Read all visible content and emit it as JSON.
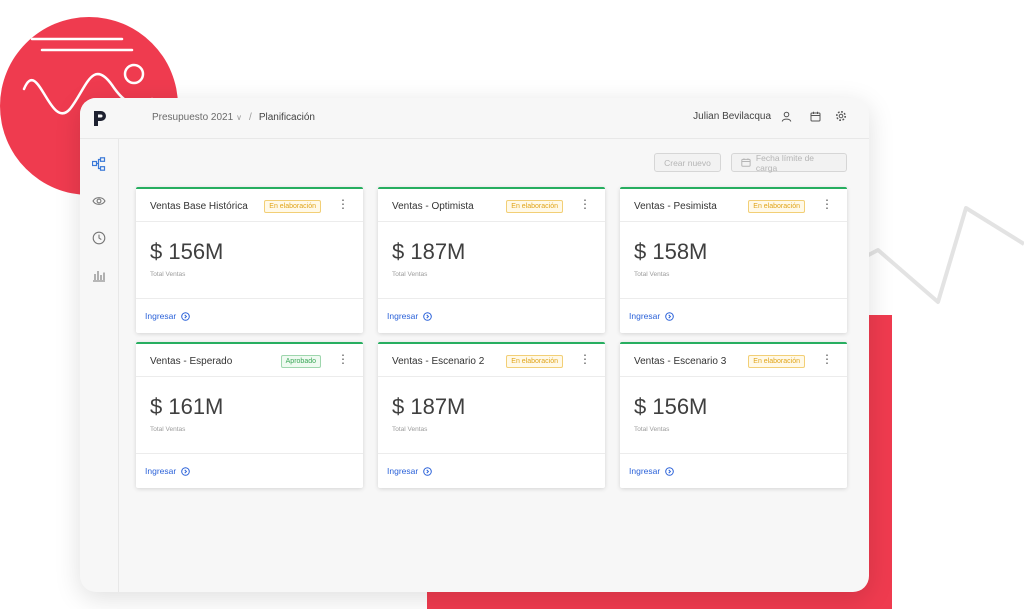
{
  "header": {
    "breadcrumb": [
      {
        "label": "Presupuesto 2021",
        "has_dropdown": true
      },
      {
        "label": "Planificación"
      }
    ],
    "separator": "/",
    "user_name": "Julian Bevilacqua"
  },
  "sidebar": {
    "items": [
      {
        "icon": "hierarchy-icon",
        "active": true
      },
      {
        "icon": "eye-icon",
        "active": false
      },
      {
        "icon": "clock-icon",
        "active": false
      },
      {
        "icon": "bar-chart-icon",
        "active": false
      }
    ]
  },
  "toolbar": {
    "create_label": "Crear nuevo",
    "deadline_label": "Fecha límite de carga"
  },
  "cards": [
    {
      "title": "Ventas Base Histórica",
      "status": "En elaboración",
      "status_type": "pending",
      "amount": "$ 156M",
      "subtitle": "Total Ventas",
      "action": "Ingresar"
    },
    {
      "title": "Ventas - Optimista",
      "status": "En elaboración",
      "status_type": "pending",
      "amount": "$ 187M",
      "subtitle": "Total Ventas",
      "action": "Ingresar"
    },
    {
      "title": "Ventas - Pesimista",
      "status": "En elaboración",
      "status_type": "pending",
      "amount": "$ 158M",
      "subtitle": "Total Ventas",
      "action": "Ingresar"
    },
    {
      "title": "Ventas - Esperado",
      "status": "Aprobado",
      "status_type": "approved",
      "amount": "$ 161M",
      "subtitle": "Total Ventas",
      "action": "Ingresar"
    },
    {
      "title": "Ventas - Escenario 2",
      "status": "En elaboración",
      "status_type": "pending",
      "amount": "$ 187M",
      "subtitle": "Total Ventas",
      "action": "Ingresar"
    },
    {
      "title": "Ventas - Escenario 3",
      "status": "En elaboración",
      "status_type": "pending",
      "amount": "$ 156M",
      "subtitle": "Total Ventas",
      "action": "Ingresar"
    }
  ],
  "colors": {
    "accent_red": "#ef3b4f",
    "card_top_green": "#27ae60",
    "link_blue": "#2b62d9",
    "pending_orange": "#e0a419",
    "approved_green": "#3aa757"
  }
}
